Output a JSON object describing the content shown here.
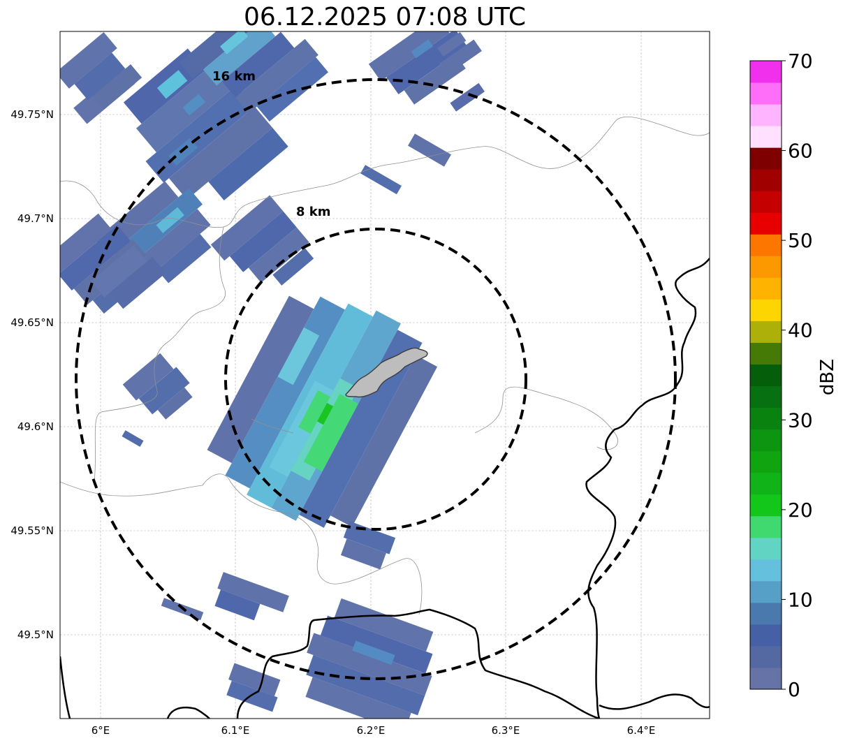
{
  "title": "06.12.2025 07:08 UTC",
  "map": {
    "lon_ticks": [
      "6°E",
      "6.1°E",
      "6.2°E",
      "6.3°E",
      "6.4°E"
    ],
    "lat_ticks": [
      "49.75°N",
      "49.7°N",
      "49.65°N",
      "49.6°N",
      "49.55°N",
      "49.5°N"
    ],
    "range_rings": [
      {
        "label": "8 km",
        "radius_km": 8
      },
      {
        "label": "16 km",
        "radius_km": 16
      }
    ],
    "city_area": "urban-area",
    "radar_cells": "reflectivity-echoes"
  },
  "colorbar": {
    "label": "dBZ",
    "ticks": [
      "0",
      "10",
      "20",
      "30",
      "40",
      "50",
      "60",
      "70"
    ],
    "min": 0,
    "max": 70,
    "colors": [
      "#6673a6",
      "#5468a2",
      "#4660a6",
      "#4a7aad",
      "#56a0c8",
      "#64c0dc",
      "#62d4c4",
      "#3fd970",
      "#12c61a",
      "#10b418",
      "#0fa410",
      "#0d9410",
      "#0a8210",
      "#077010",
      "#045e0a",
      "#457a06",
      "#aeb00a",
      "#fdd500",
      "#fdb300",
      "#fd9900",
      "#fd7700",
      "#e80000",
      "#c40000",
      "#a00000",
      "#7e0000",
      "#ffe0ff",
      "#ffb4ff",
      "#ff6ef9",
      "#f030ec"
    ]
  }
}
